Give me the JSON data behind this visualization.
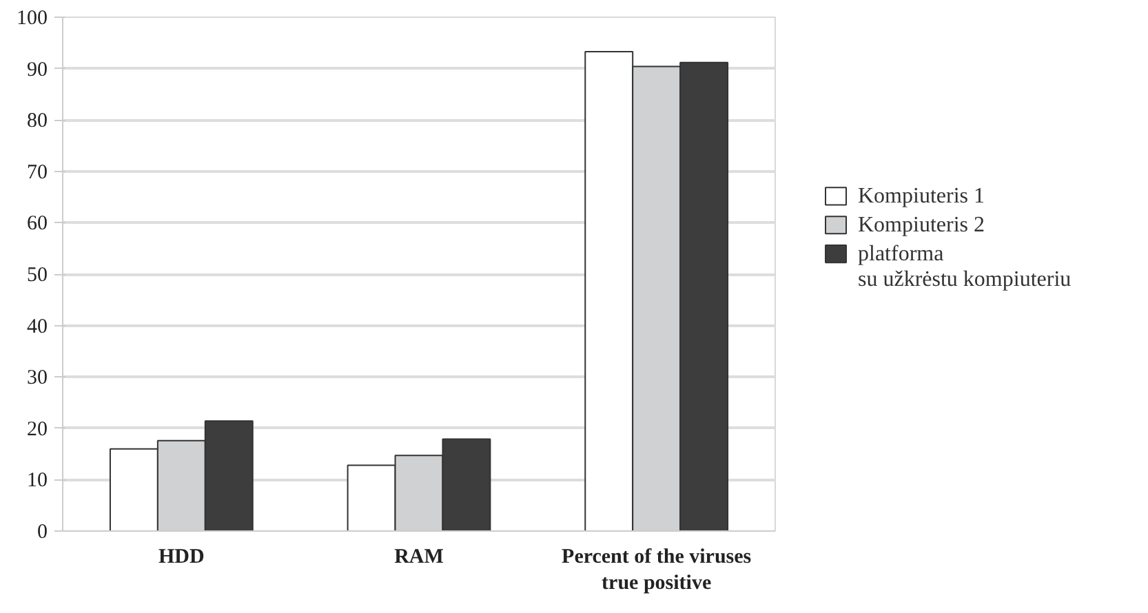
{
  "chart_data": {
    "type": "bar",
    "categories": [
      "HDD",
      "RAM",
      "Percent of the viruses\ntrue positive"
    ],
    "series": [
      {
        "name": "Kompiuteris 1",
        "color": "#ffffff",
        "values": [
          16,
          12.8,
          93.3
        ]
      },
      {
        "name": "Kompiuteris 2",
        "color": "#d0d1d3",
        "values": [
          17.6,
          14.7,
          90.4
        ]
      },
      {
        "name": "platforma\nsu užkrėstu kompiuteriu",
        "color": "#3d3d3d",
        "values": [
          21.4,
          17.9,
          91.2
        ]
      }
    ],
    "ylim": [
      0,
      100
    ],
    "yticks": [
      0,
      10,
      20,
      30,
      40,
      50,
      60,
      70,
      80,
      90,
      100
    ],
    "grid": "y",
    "legend": "right"
  }
}
